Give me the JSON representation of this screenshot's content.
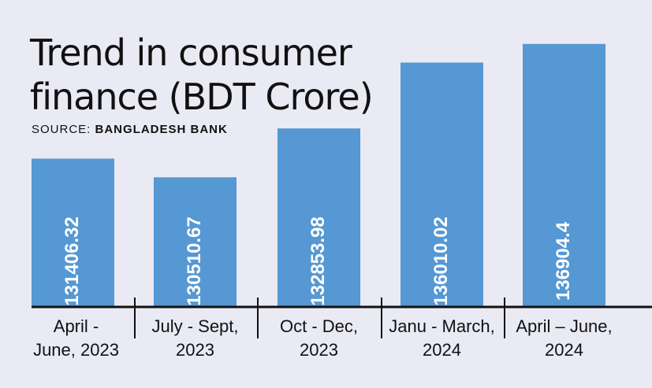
{
  "chart_data": {
    "type": "bar",
    "title_lines": [
      "Trend in consumer",
      "finance (BDT Crore)"
    ],
    "source_prefix": "SOURCE: ",
    "source_name": "BANGLADESH BANK",
    "categories": [
      [
        "April -",
        "June, 2023"
      ],
      [
        "July  - Sept,",
        "2023"
      ],
      [
        "Oct - Dec,",
        "2023"
      ],
      [
        "Janu - March,",
        "2024"
      ],
      [
        "April – June,",
        "2024"
      ]
    ],
    "values": [
      131406.32,
      130510.67,
      132853.98,
      136010.02,
      136904.4
    ],
    "value_labels": [
      "131406.32",
      "130510.67",
      "132853.98",
      "136010.02",
      "136904.4"
    ],
    "ylim": [
      124300,
      137500
    ],
    "colors": {
      "bar": "#5598d3",
      "axis": "#111111",
      "background": "#e9eaf4"
    }
  }
}
